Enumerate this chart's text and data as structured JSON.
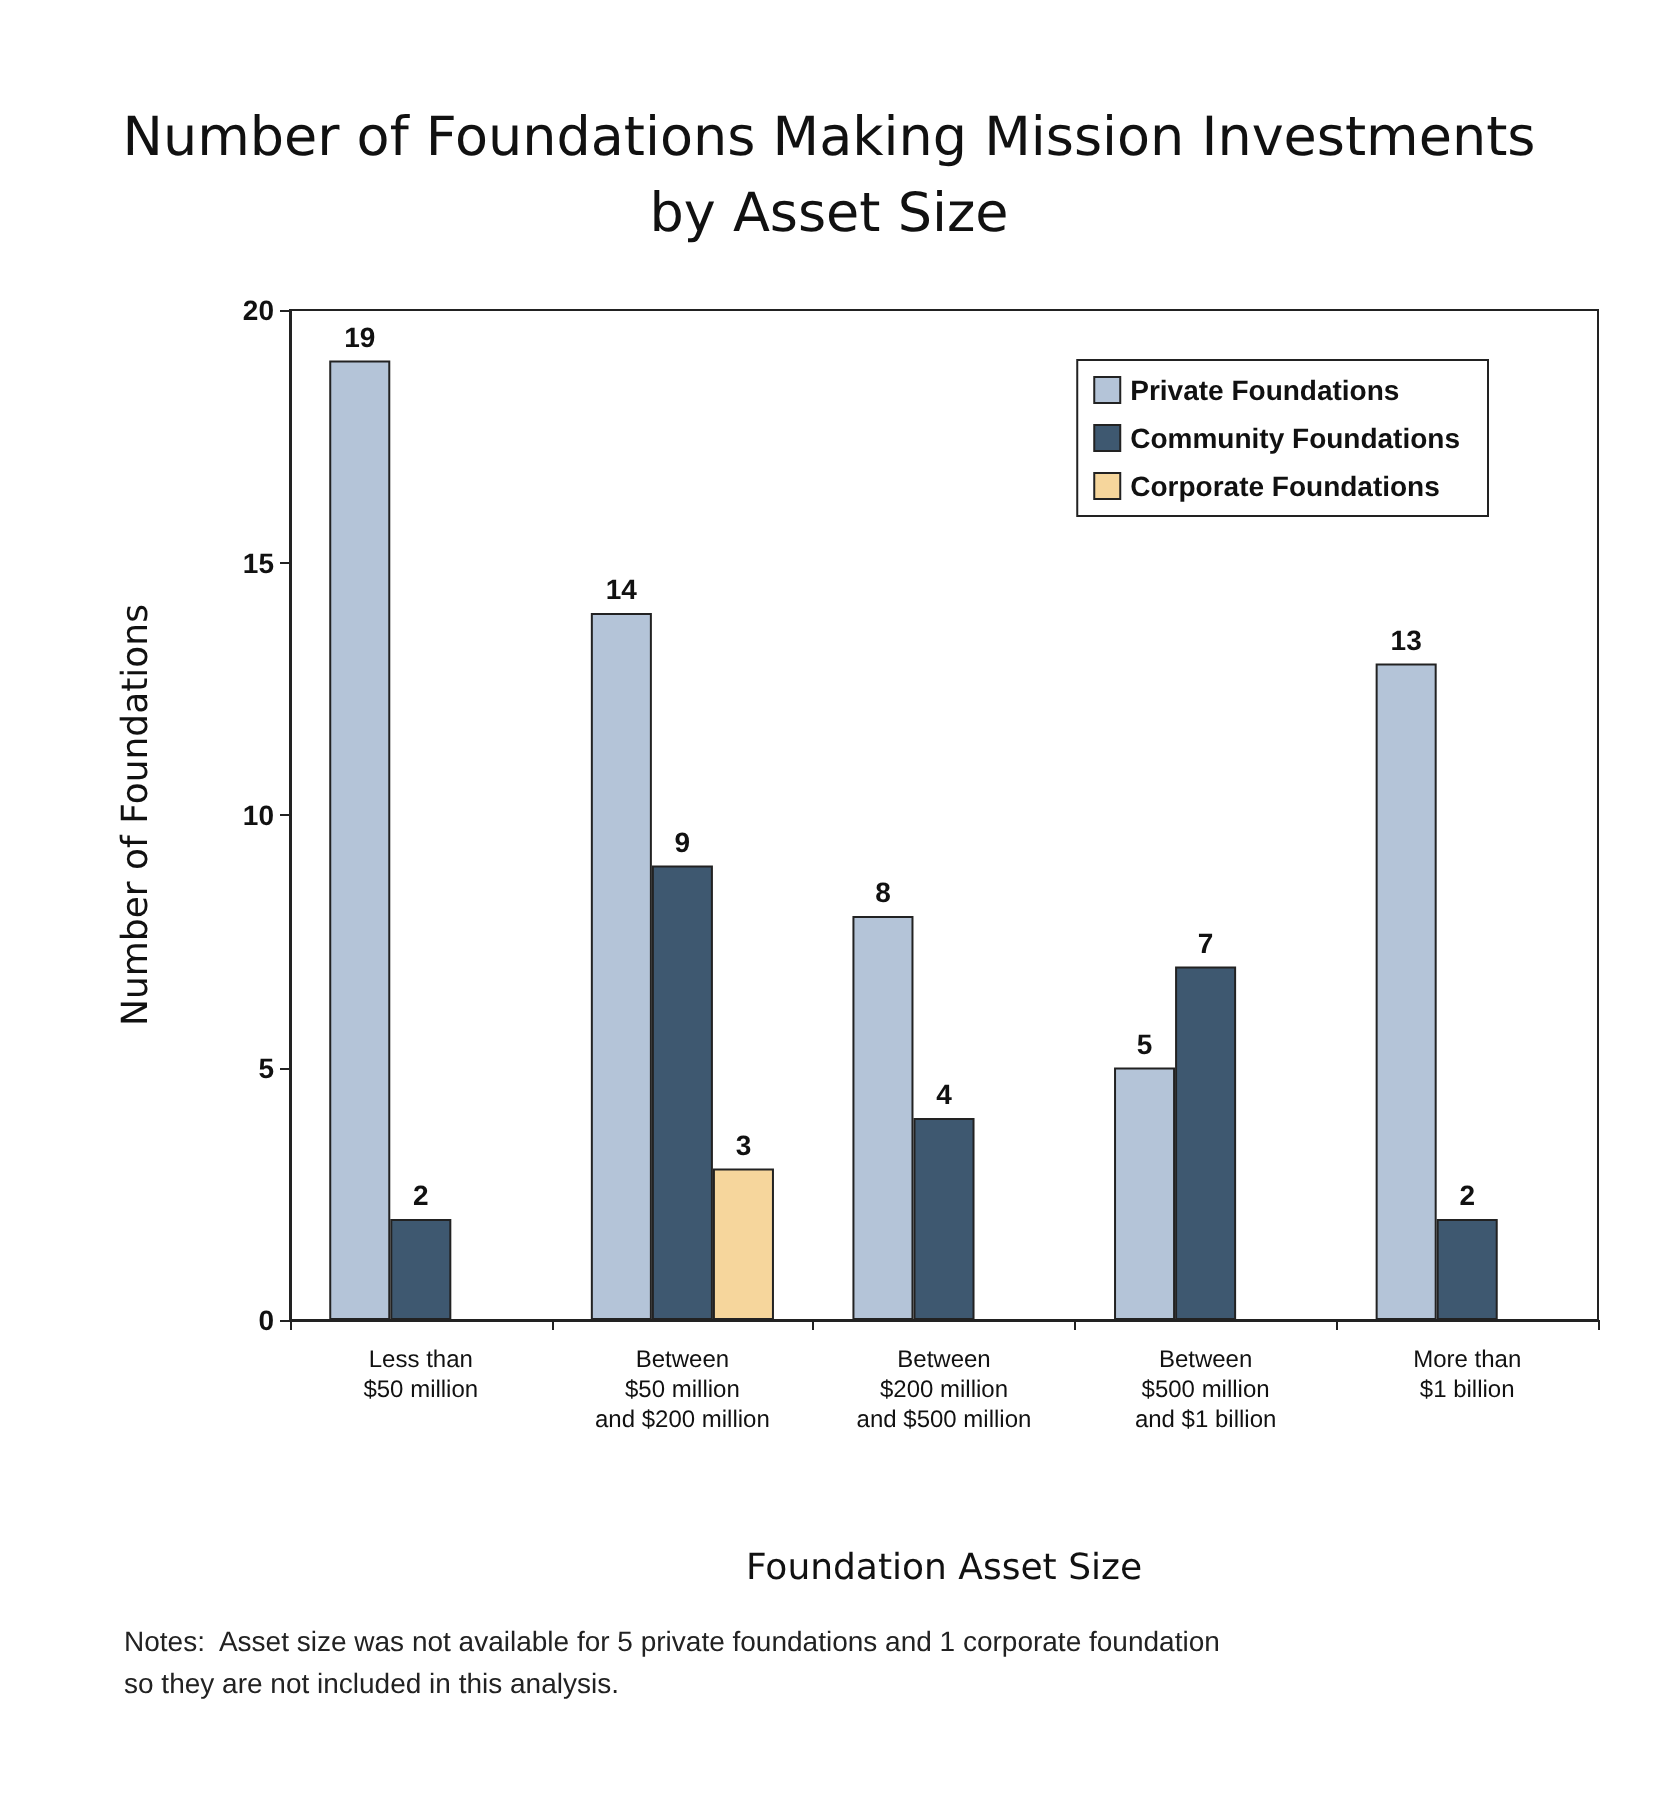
{
  "chart_data": {
    "type": "bar",
    "title": "Number of Foundations Making Mission Investments\nby Asset Size",
    "xlabel": "Foundation Asset Size",
    "ylabel": "Number of Foundations",
    "categories": [
      "Less than\n$50 million",
      "Between\n$50 million\nand $200 million",
      "Between\n$200 million\nand $500 million",
      "Between\n$500 million\nand $1 billion",
      "More than\n$1 billion"
    ],
    "series": [
      {
        "name": "Private Foundations",
        "color": "#b4c4d8",
        "values": [
          19,
          14,
          8,
          5,
          13
        ]
      },
      {
        "name": "Community Foundations",
        "color": "#3e5870",
        "values": [
          2,
          9,
          4,
          7,
          2
        ]
      },
      {
        "name": "Corporate Foundations",
        "color": "#f6d69c",
        "values": [
          null,
          3,
          null,
          null,
          null
        ]
      }
    ],
    "ylim": [
      0,
      20
    ],
    "yticks": [
      0,
      5,
      10,
      15,
      20
    ],
    "grid": false,
    "legend": "top right",
    "data_labels": true,
    "annotations": [
      "Notes:  Asset size was not available for 5 private foundations and 1 corporate foundation so they are not included in this analysis."
    ]
  }
}
